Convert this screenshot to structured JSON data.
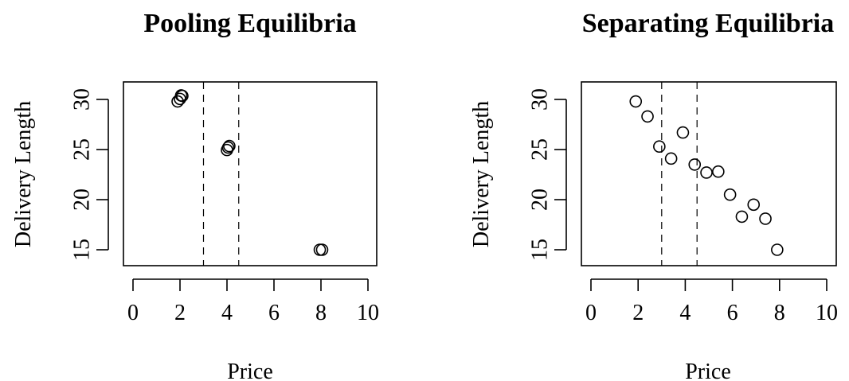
{
  "chart_data": [
    {
      "type": "scatter",
      "title": "Pooling Equilibria",
      "xlabel": "Price",
      "ylabel": "Delivery Length",
      "xlim": [
        0,
        10
      ],
      "ylim": [
        13.5,
        31.8
      ],
      "xticks": [
        0,
        2,
        4,
        6,
        8,
        10
      ],
      "yticks": [
        15,
        20,
        25,
        30
      ],
      "grid": false,
      "vlines": [
        3.0,
        4.5
      ],
      "series": [
        {
          "x": [
            1.9,
            2.0,
            2.1,
            2.05,
            4.0,
            4.05,
            4.1,
            7.95,
            8.05
          ],
          "y": [
            29.8,
            30.05,
            30.35,
            30.4,
            24.95,
            25.2,
            25.35,
            15.0,
            15.0
          ]
        }
      ]
    },
    {
      "type": "scatter",
      "title": "Separating Equilibria",
      "xlabel": "Price",
      "ylabel": "Delivery Length",
      "xlim": [
        0,
        10
      ],
      "ylim": [
        13.5,
        31.8
      ],
      "xticks": [
        0,
        2,
        4,
        6,
        8,
        10
      ],
      "yticks": [
        15,
        20,
        25,
        30
      ],
      "grid": false,
      "vlines": [
        3.0,
        4.5
      ],
      "series": [
        {
          "x": [
            1.9,
            2.4,
            2.9,
            3.4,
            3.9,
            4.4,
            4.9,
            5.4,
            5.9,
            6.4,
            6.9,
            7.4,
            7.9
          ],
          "y": [
            29.8,
            28.3,
            25.3,
            24.1,
            26.7,
            23.5,
            22.7,
            22.8,
            20.5,
            18.3,
            19.5,
            18.1,
            15.0
          ]
        }
      ]
    }
  ]
}
